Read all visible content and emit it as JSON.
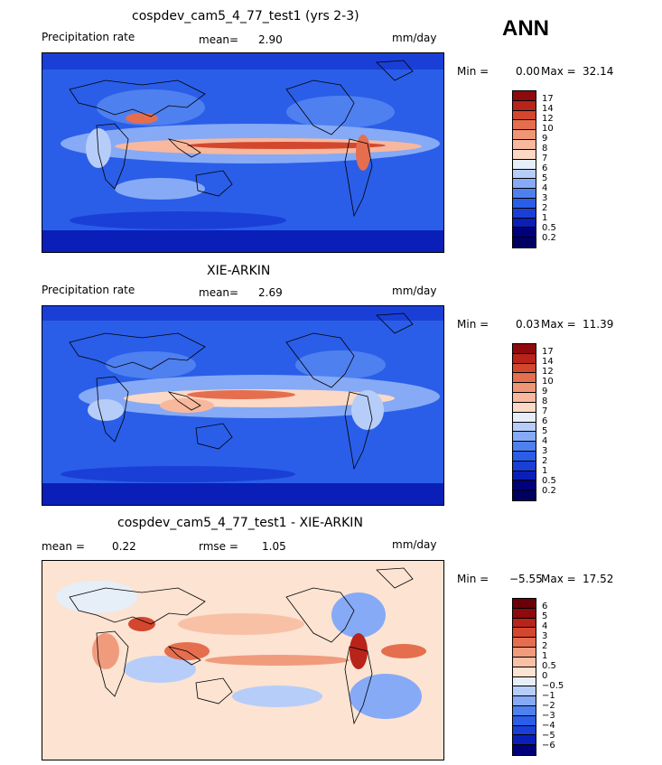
{
  "season": "ANN",
  "panels": [
    {
      "title": "cospdev_cam5_4_77_test1 (yrs 2-3)",
      "left_label": "Precipitation rate",
      "stat_label": "mean=",
      "stat_value": "2.90",
      "units": "mm/day",
      "min_label": "Min =",
      "min_value": "0.00",
      "max_label": "Max =",
      "max_value": "32.14",
      "colorbar_ticks": [
        "17",
        "14",
        "12",
        "10",
        "9",
        "8",
        "7",
        "6",
        "5",
        "4",
        "3",
        "2",
        "1",
        "0.5",
        "0.2"
      ]
    },
    {
      "title": "XIE-ARKIN",
      "left_label": "Precipitation rate",
      "stat_label": "mean=",
      "stat_value": "2.69",
      "units": "mm/day",
      "min_label": "Min =",
      "min_value": "0.03",
      "max_label": "Max =",
      "max_value": "11.39",
      "colorbar_ticks": [
        "17",
        "14",
        "12",
        "10",
        "9",
        "8",
        "7",
        "6",
        "5",
        "4",
        "3",
        "2",
        "1",
        "0.5",
        "0.2"
      ]
    },
    {
      "title": "cospdev_cam5_4_77_test1 - XIE-ARKIN",
      "left_label": "mean =",
      "left_value": "0.22",
      "stat_label": "rmse =",
      "stat_value": "1.05",
      "units": "mm/day",
      "min_label": "Min =",
      "min_value": "−5.55",
      "max_label": "Max =",
      "max_value": "17.52",
      "colorbar_ticks": [
        "6",
        "5",
        "4",
        "3",
        "2",
        "1",
        "0.5",
        "0",
        "−0.5",
        "−1",
        "−2",
        "−3",
        "−4",
        "−5",
        "−6"
      ]
    }
  ],
  "chart_data": [
    {
      "type": "heatmap",
      "title": "cospdev_cam5_4_77_test1 (yrs 2-3)",
      "variable": "Precipitation rate",
      "units": "mm/day",
      "mean": 2.9,
      "min": 0.0,
      "max": 32.14,
      "contour_levels": [
        0.2,
        0.5,
        1,
        2,
        3,
        4,
        5,
        6,
        7,
        8,
        9,
        10,
        12,
        14,
        17
      ],
      "colors": [
        "#00007a",
        "#0a1fb8",
        "#1a3fd6",
        "#2a5ee8",
        "#4f80f0",
        "#86aaf6",
        "#b7cdf9",
        "#e6eef8",
        "#fcd9c4",
        "#f8b89d",
        "#f19675",
        "#e56e4f",
        "#d3472e",
        "#b8231a",
        "#8f0a0c",
        "#6a0008"
      ]
    },
    {
      "type": "heatmap",
      "title": "XIE-ARKIN",
      "variable": "Precipitation rate",
      "units": "mm/day",
      "mean": 2.69,
      "min": 0.03,
      "max": 11.39,
      "contour_levels": [
        0.2,
        0.5,
        1,
        2,
        3,
        4,
        5,
        6,
        7,
        8,
        9,
        10,
        12,
        14,
        17
      ],
      "colors": [
        "#00007a",
        "#0a1fb8",
        "#1a3fd6",
        "#2a5ee8",
        "#4f80f0",
        "#86aaf6",
        "#b7cdf9",
        "#e6eef8",
        "#fcd9c4",
        "#f8b89d",
        "#f19675",
        "#e56e4f",
        "#d3472e",
        "#b8231a",
        "#8f0a0c",
        "#6a0008"
      ]
    },
    {
      "type": "heatmap",
      "title": "cospdev_cam5_4_77_test1 - XIE-ARKIN",
      "units": "mm/day",
      "mean": 0.22,
      "rmse": 1.05,
      "min": -5.55,
      "max": 17.52,
      "contour_levels": [
        -6,
        -5,
        -4,
        -3,
        -2,
        -1,
        -0.5,
        0,
        0.5,
        1,
        2,
        3,
        4,
        5,
        6
      ],
      "colors": [
        "#00007a",
        "#0a1fb8",
        "#1a3fd6",
        "#2a5ee8",
        "#4f80f0",
        "#86aaf6",
        "#b7cdf9",
        "#e6eef8",
        "#fce3d2",
        "#f8c1a6",
        "#f19b7d",
        "#e56e4f",
        "#d3472e",
        "#b8231a",
        "#8f0a0c",
        "#6a0008"
      ]
    }
  ]
}
